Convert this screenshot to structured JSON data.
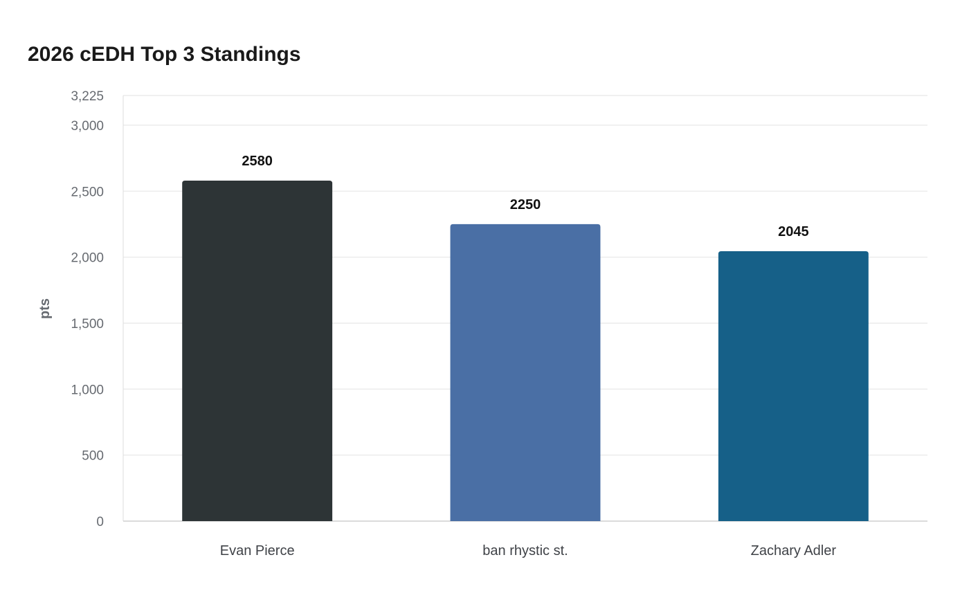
{
  "chart_data": {
    "type": "bar",
    "title": "2026 cEDH Top 3 Standings",
    "xlabel": "",
    "ylabel": "pts",
    "categories": [
      "Evan Pierce",
      "ban rhystic st.",
      "Zachary Adler"
    ],
    "values": [
      2580,
      2250,
      2045
    ],
    "data_labels": [
      "2580",
      "2250",
      "2045"
    ],
    "colors": [
      "#2d3436",
      "#4a6fa5",
      "#166088"
    ],
    "ylim": [
      0,
      3225
    ],
    "yticks": [
      0,
      500,
      1000,
      1500,
      2000,
      2500,
      3000,
      3225
    ],
    "ytick_labels": [
      "0",
      "500",
      "1,000",
      "1,500",
      "2,000",
      "2,500",
      "3,000",
      "3,225"
    ],
    "grid": true,
    "legend": "none"
  }
}
